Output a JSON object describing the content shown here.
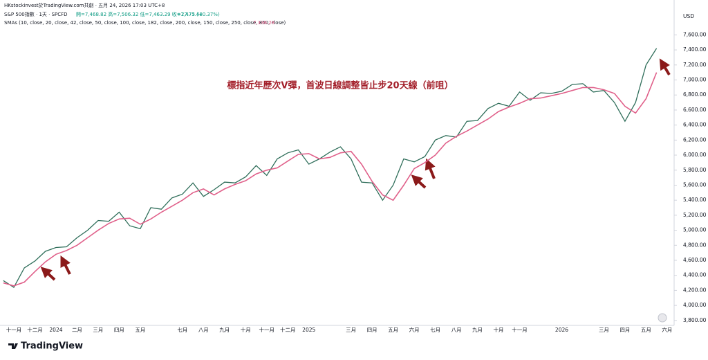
{
  "header": {
    "byline": "HKstockinvest於TradingView.com共創 · 五月 24, 2026 17:03 UTC+8",
    "symbol_info": "· 1天 · SPCFD",
    "ohlc": "開=7,468.82 高=7,506.32 低=7,463.29 收=7,473.48",
    "change": "+27.75 (+0.37%)",
    "sma_value": "7,336.28"
  },
  "chart_data": {
    "type": "line",
    "annotation": "標指近年歷次V彈，首波日線調整皆止步20天線（前咀）",
    "y_unit": "USD",
    "categories": [
      null,
      "十一月",
      null,
      "十二月",
      null,
      "2024",
      null,
      "二月",
      null,
      "三月",
      null,
      "四月",
      null,
      "五月",
      null,
      null,
      null,
      "七月",
      null,
      "八月",
      null,
      "九月",
      null,
      "十月",
      null,
      "十一月",
      null,
      "十二月",
      null,
      "2025",
      null,
      null,
      null,
      "三月",
      null,
      "四月",
      null,
      "五月",
      null,
      "六月",
      null,
      "七月",
      null,
      "八月",
      null,
      "九月",
      null,
      "十月",
      null,
      "十一月",
      null,
      null,
      null,
      "2026",
      null,
      null,
      null,
      "三月",
      null,
      "四月",
      null,
      "五月",
      null,
      "六月"
    ],
    "series": [
      {
        "name": "S&P 500指數",
        "color": "#2f6e5a",
        "values": [
          4330,
          4240,
          4500,
          4590,
          4720,
          4770,
          4780,
          4900,
          5000,
          5130,
          5120,
          5240,
          5060,
          5020,
          5300,
          5280,
          5430,
          5480,
          5630,
          5450,
          5540,
          5640,
          5630,
          5710,
          5860,
          5730,
          5950,
          6030,
          6070,
          5880,
          5950,
          6040,
          6110,
          5950,
          5640,
          5630,
          5400,
          5600,
          5950,
          5910,
          5980,
          6200,
          6260,
          6240,
          6450,
          6460,
          6620,
          6690,
          6650,
          6840,
          6730,
          6830,
          6820,
          6850,
          6940,
          6950,
          6840,
          6860,
          6700,
          6450,
          6700,
          7200,
          7420,
          null
        ]
      },
      {
        "name": "SMAs (10, close, 20, close, 42, close, 50, close, 100, close, 182, close, 200, close, 150, close, 250, close, 850, close)",
        "color": "#e0608a",
        "values": [
          4300,
          4260,
          4310,
          4450,
          4580,
          4680,
          4730,
          4800,
          4900,
          5000,
          5090,
          5150,
          5160,
          5080,
          5150,
          5240,
          5320,
          5400,
          5500,
          5550,
          5470,
          5550,
          5610,
          5660,
          5750,
          5800,
          5830,
          5920,
          6010,
          6020,
          5950,
          5970,
          6030,
          6050,
          5880,
          5650,
          5470,
          5400,
          5600,
          5820,
          5900,
          6000,
          6160,
          6250,
          6320,
          6400,
          6480,
          6580,
          6640,
          6690,
          6750,
          6760,
          6790,
          6820,
          6860,
          6900,
          6900,
          6870,
          6820,
          6650,
          6560,
          6750,
          7100,
          null
        ]
      }
    ],
    "ylim": [
      3780,
      7880
    ],
    "yticks": [
      {
        "value": 3800,
        "label": "3,800.00"
      },
      {
        "value": 4000,
        "label": "4,000.00"
      },
      {
        "value": 4200,
        "label": "4,200.00"
      },
      {
        "value": 4400,
        "label": "4,400.00"
      },
      {
        "value": 4600,
        "label": "4,600.00"
      },
      {
        "value": 4800,
        "label": "4,800.00"
      },
      {
        "value": 5000,
        "label": "5,000.00"
      },
      {
        "value": 5200,
        "label": "5,200.00"
      },
      {
        "value": 5400,
        "label": "5,400.00"
      },
      {
        "value": 5600,
        "label": "5,600.00"
      },
      {
        "value": 5800,
        "label": "5,800.00"
      },
      {
        "value": 6000,
        "label": "6,000.00"
      },
      {
        "value": 6200,
        "label": "6,200.00"
      },
      {
        "value": 6400,
        "label": "6,400.00"
      },
      {
        "value": 6600,
        "label": "6,600.00"
      },
      {
        "value": 6800,
        "label": "6,800.00"
      },
      {
        "value": 7000,
        "label": "7,000.00"
      },
      {
        "value": 7200,
        "label": "7,200.00"
      },
      {
        "value": 7400,
        "label": "7,400.00"
      },
      {
        "value": 7600,
        "label": "7,600.00"
      }
    ],
    "grid": false
  },
  "footer": {
    "brand": "TradingView"
  }
}
